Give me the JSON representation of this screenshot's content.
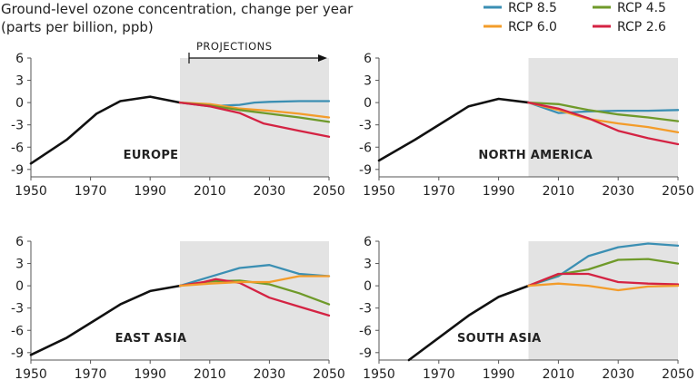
{
  "title_lines": [
    "Ground-level ozone concentration, change per year",
    "(parts per billion, ppb)"
  ],
  "projections_label": "PROJECTIONS",
  "colors": {
    "historical": "#111111",
    "shade": "#e3e3e3",
    "axis": "#555555"
  },
  "chart_data": [
    {
      "type": "line",
      "region": "EUROPE",
      "xlim": [
        1950,
        2050
      ],
      "ylim": [
        -10,
        6
      ],
      "x_ticks": [
        1950,
        1970,
        1990,
        2010,
        2030,
        2050
      ],
      "y_ticks": [
        6,
        3,
        0,
        -3,
        -6,
        -9
      ],
      "projection_start": 2000,
      "series": [
        {
          "name": "Historical",
          "color": "#111111",
          "x": [
            1950,
            1962,
            1972,
            1980,
            1990,
            2000
          ],
          "y": [
            -8.2,
            -5,
            -1.5,
            0.2,
            0.8,
            0
          ]
        },
        {
          "name": "RCP 8.5",
          "color": "#3b8fb3",
          "x": [
            2000,
            2010,
            2020,
            2025,
            2030,
            2040,
            2050
          ],
          "y": [
            0,
            -0.5,
            -0.3,
            0,
            0.1,
            0.2,
            0.2
          ]
        },
        {
          "name": "RCP 6.0",
          "color": "#f39c2a",
          "x": [
            2000,
            2010,
            2020,
            2030,
            2040,
            2050
          ],
          "y": [
            0,
            -0.2,
            -0.8,
            -1.1,
            -1.5,
            -2
          ]
        },
        {
          "name": "RCP 4.5",
          "color": "#6f9a2a",
          "x": [
            2000,
            2010,
            2020,
            2030,
            2040,
            2050
          ],
          "y": [
            0,
            -0.4,
            -1,
            -1.5,
            -2,
            -2.6
          ]
        },
        {
          "name": "RCP 2.6",
          "color": "#d42343",
          "x": [
            2000,
            2010,
            2020,
            2028,
            2040,
            2050
          ],
          "y": [
            0,
            -0.5,
            -1.4,
            -2.8,
            -3.8,
            -4.6
          ]
        }
      ]
    },
    {
      "type": "line",
      "region": "NORTH AMERICA",
      "xlim": [
        1950,
        2050
      ],
      "ylim": [
        -10,
        6
      ],
      "x_ticks": [
        1950,
        1970,
        1990,
        2010,
        2030,
        2050
      ],
      "y_ticks": [
        6,
        3,
        0,
        -3,
        -6,
        -9
      ],
      "projection_start": 2000,
      "series": [
        {
          "name": "Historical",
          "color": "#111111",
          "x": [
            1950,
            1962,
            1972,
            1980,
            1990,
            2000
          ],
          "y": [
            -7.8,
            -5,
            -2.5,
            -0.5,
            0.5,
            0
          ]
        },
        {
          "name": "RCP 8.5",
          "color": "#3b8fb3",
          "x": [
            2000,
            2010,
            2020,
            2030,
            2040,
            2050
          ],
          "y": [
            0,
            -1.4,
            -1.2,
            -1.1,
            -1.1,
            -1.0
          ]
        },
        {
          "name": "RCP 6.0",
          "color": "#f39c2a",
          "x": [
            2000,
            2010,
            2020,
            2030,
            2040,
            2050
          ],
          "y": [
            0,
            -1,
            -2.2,
            -2.8,
            -3.3,
            -4
          ]
        },
        {
          "name": "RCP 4.5",
          "color": "#6f9a2a",
          "x": [
            2000,
            2010,
            2020,
            2030,
            2040,
            2050
          ],
          "y": [
            0,
            -0.2,
            -1,
            -1.6,
            -2,
            -2.5
          ]
        },
        {
          "name": "RCP 2.6",
          "color": "#d42343",
          "x": [
            2000,
            2010,
            2020,
            2030,
            2040,
            2050
          ],
          "y": [
            0,
            -0.8,
            -2.1,
            -3.8,
            -4.8,
            -5.6
          ]
        }
      ]
    },
    {
      "type": "line",
      "region": "EAST ASIA",
      "xlim": [
        1950,
        2050
      ],
      "ylim": [
        -10,
        6
      ],
      "x_ticks": [
        1950,
        1970,
        1990,
        2010,
        2030,
        2050
      ],
      "y_ticks": [
        6,
        3,
        0,
        -3,
        -6,
        -9
      ],
      "projection_start": 2000,
      "series": [
        {
          "name": "Historical",
          "color": "#111111",
          "x": [
            1950,
            1962,
            1972,
            1980,
            1990,
            2000
          ],
          "y": [
            -9.3,
            -7,
            -4.5,
            -2.5,
            -0.7,
            0
          ]
        },
        {
          "name": "RCP 8.5",
          "color": "#3b8fb3",
          "x": [
            2000,
            2010,
            2020,
            2030,
            2040,
            2050
          ],
          "y": [
            0,
            1.2,
            2.4,
            2.8,
            1.6,
            1.3
          ]
        },
        {
          "name": "RCP 4.5",
          "color": "#6f9a2a",
          "x": [
            2000,
            2010,
            2020,
            2030,
            2040,
            2050
          ],
          "y": [
            0,
            0.6,
            0.7,
            0.2,
            -1,
            -2.5
          ]
        },
        {
          "name": "RCP 2.6",
          "color": "#d42343",
          "x": [
            2000,
            2008,
            2012,
            2020,
            2030,
            2040,
            2050
          ],
          "y": [
            0,
            0.5,
            0.9,
            0.4,
            -1.6,
            -2.8,
            -4
          ]
        },
        {
          "name": "RCP 6.0",
          "color": "#f39c2a",
          "x": [
            2000,
            2010,
            2020,
            2030,
            2040,
            2050
          ],
          "y": [
            0,
            0.3,
            0.5,
            0.5,
            1.3,
            1.3
          ]
        }
      ]
    },
    {
      "type": "line",
      "region": "SOUTH ASIA",
      "xlim": [
        1950,
        2050
      ],
      "ylim": [
        -10,
        6
      ],
      "x_ticks": [
        1950,
        1970,
        1990,
        2010,
        2030,
        2050
      ],
      "y_ticks": [
        6,
        3,
        0,
        -3,
        -6,
        -9
      ],
      "projection_start": 2000,
      "series": [
        {
          "name": "Historical",
          "color": "#111111",
          "x": [
            1960,
            1970,
            1980,
            1990,
            2000
          ],
          "y": [
            -10,
            -7,
            -4,
            -1.5,
            0
          ]
        },
        {
          "name": "RCP 8.5",
          "color": "#3b8fb3",
          "x": [
            2000,
            2010,
            2020,
            2030,
            2040,
            2050
          ],
          "y": [
            0,
            1.3,
            4,
            5.2,
            5.7,
            5.4
          ]
        },
        {
          "name": "RCP 4.5",
          "color": "#6f9a2a",
          "x": [
            2000,
            2010,
            2020,
            2030,
            2040,
            2050
          ],
          "y": [
            0,
            1.5,
            2.2,
            3.5,
            3.6,
            3
          ]
        },
        {
          "name": "RCP 2.6",
          "color": "#d42343",
          "x": [
            2000,
            2010,
            2020,
            2030,
            2040,
            2050
          ],
          "y": [
            0,
            1.6,
            1.6,
            0.5,
            0.3,
            0.2
          ]
        },
        {
          "name": "RCP 6.0",
          "color": "#f39c2a",
          "x": [
            2000,
            2010,
            2020,
            2030,
            2040,
            2050
          ],
          "y": [
            0,
            0.3,
            0,
            -0.6,
            -0.1,
            0
          ]
        }
      ]
    }
  ],
  "legend": [
    {
      "label": "RCP 8.5",
      "color": "#3b8fb3"
    },
    {
      "label": "RCP 4.5",
      "color": "#6f9a2a"
    },
    {
      "label": "RCP 6.0",
      "color": "#f39c2a"
    },
    {
      "label": "RCP 2.6",
      "color": "#d42343"
    }
  ]
}
